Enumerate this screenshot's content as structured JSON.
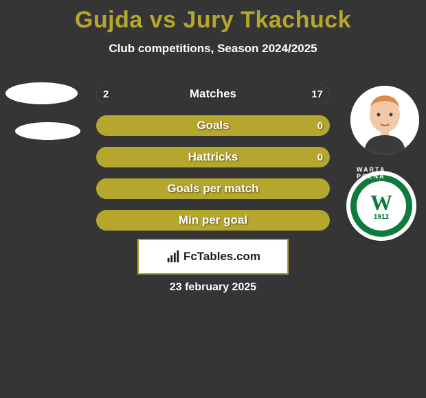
{
  "background_color": "#353535",
  "title": {
    "text": "Gujda vs Jury Tkachuck",
    "color": "#b5a62e",
    "fontsize": 34
  },
  "subtitle": {
    "text": "Club competitions, Season 2024/2025",
    "color": "#ffffff",
    "fontsize": 17
  },
  "bars": {
    "track_color": "#b5a62e",
    "accent_color": "#353535",
    "label_color": "#ffffff",
    "value_color": "#ffffff",
    "items": [
      {
        "label": "Matches",
        "left_value": "2",
        "right_value": "17",
        "left_pct": 11,
        "right_pct": 89
      },
      {
        "label": "Goals",
        "left_value": "",
        "right_value": "0",
        "left_pct": 0,
        "right_pct": 0
      },
      {
        "label": "Hattricks",
        "left_value": "",
        "right_value": "0",
        "left_pct": 0,
        "right_pct": 0
      },
      {
        "label": "Goals per match",
        "left_value": "",
        "right_value": "",
        "left_pct": 0,
        "right_pct": 0
      },
      {
        "label": "Min per goal",
        "left_value": "",
        "right_value": "",
        "left_pct": 0,
        "right_pct": 0
      }
    ]
  },
  "player_right": {
    "skin": "#f2c9a8",
    "hair": "#d88a4a",
    "shirt": "#3a3a3a"
  },
  "club_badge": {
    "outer_bg": "#ffffff",
    "ring_color": "#0e7a3b",
    "inner_bg": "#ffffff",
    "text_color": "#0e7a3b",
    "top_text": "WARTA POZNA",
    "letter": "W",
    "year": "1912"
  },
  "footer_box": {
    "text": "FcTables.com",
    "border_color": "#b5a62e",
    "text_color": "#1a1a1a",
    "bg_color": "#ffffff",
    "icon_color": "#1a1a1a"
  },
  "footer_date": {
    "text": "23 february 2025",
    "color": "#ffffff"
  }
}
